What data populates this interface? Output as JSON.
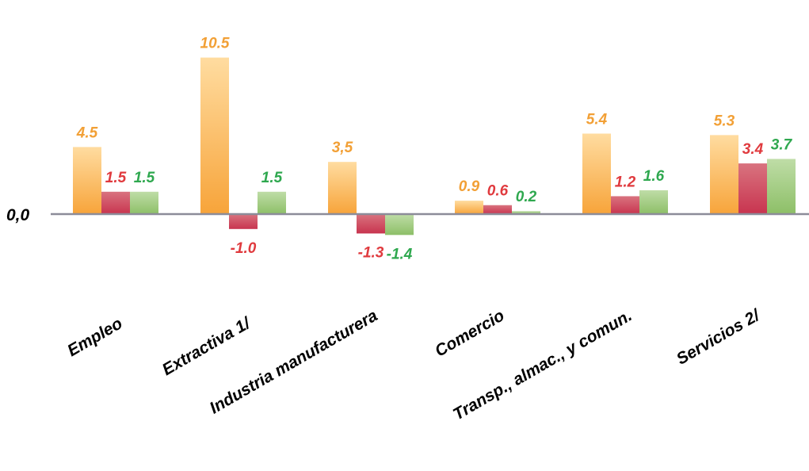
{
  "chart_data": {
    "type": "bar",
    "title": "",
    "xlabel": "",
    "ylabel": "",
    "zero_label": "0,0",
    "categories": [
      "Empleo",
      "Extractiva 1/",
      "Industria manufacturera",
      "Comercio",
      "Transp., almac., y comun.",
      "Servicios 2/"
    ],
    "series": [
      {
        "color": "#F7A43A",
        "values": [
          4.5,
          10.5,
          3.5,
          0.9,
          5.4,
          5.3
        ],
        "labels": [
          "4.5",
          "10.5",
          "3,5",
          "0.9",
          "5.4",
          "5.3"
        ]
      },
      {
        "color": "#C8344F",
        "values": [
          1.5,
          -1.0,
          -1.3,
          0.6,
          1.2,
          3.4
        ],
        "labels": [
          "1.5",
          "-1.0",
          "-1.3",
          "0.6",
          "1.2",
          "3.4"
        ]
      },
      {
        "color": "#8DBF67",
        "values": [
          1.5,
          1.5,
          -1.4,
          0.2,
          1.6,
          3.7
        ],
        "labels": [
          "1.5",
          "1.5",
          "-1.4",
          "0.2",
          "1.6",
          "3.7"
        ]
      }
    ],
    "label_colors": [
      "#F2A036",
      "#E03A3E",
      "#2FA84F"
    ],
    "ylim": [
      -1.4,
      10.5
    ],
    "grid": false,
    "legend": "none"
  }
}
